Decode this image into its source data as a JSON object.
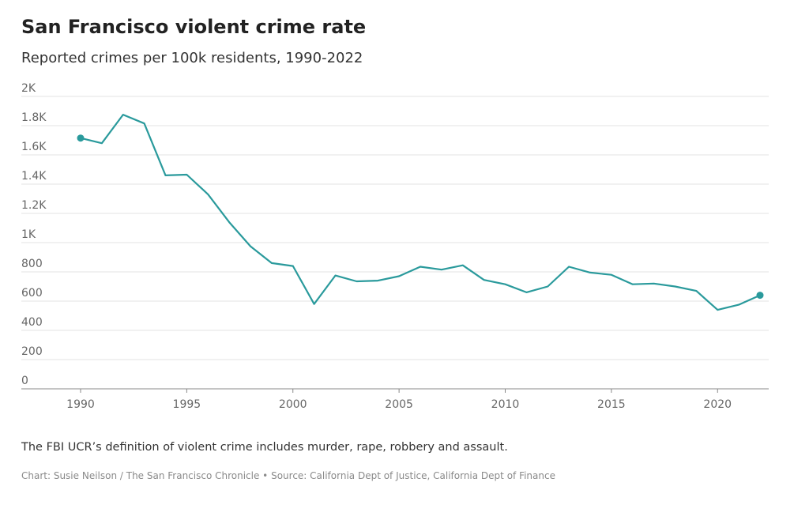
{
  "header": {
    "title": "San Francisco violent crime rate",
    "subtitle": "Reported crimes per 100k residents, 1990-2022"
  },
  "footer": {
    "note": "The FBI UCR’s definition of violent crime includes murder, rape, robbery and assault.",
    "credit": "Chart: Susie Neilson / The San Francisco Chronicle • Source: California Dept of Justice, California Dept of Finance"
  },
  "colors": {
    "line": "#2a9a9c",
    "grid": "#e3e3e3",
    "axis_text": "#666666"
  },
  "chart_data": {
    "type": "line",
    "title": "San Francisco violent crime rate",
    "subtitle": "Reported crimes per 100k residents, 1990-2022",
    "xlabel": "",
    "ylabel": "",
    "xlim": [
      1990,
      2022
    ],
    "ylim": [
      0,
      2000
    ],
    "x_ticks": [
      1990,
      1995,
      2000,
      2005,
      2010,
      2015,
      2020
    ],
    "y_ticks": [
      0,
      200,
      400,
      600,
      800,
      1000,
      1200,
      1400,
      1600,
      1800,
      2000
    ],
    "y_tick_labels": [
      "0",
      "200",
      "400",
      "600",
      "800",
      "1K",
      "1.2K",
      "1.4K",
      "1.6K",
      "1.8K",
      "2K"
    ],
    "grid": true,
    "end_markers": true,
    "x": [
      1990,
      1991,
      1992,
      1993,
      1994,
      1995,
      1996,
      1997,
      1998,
      1999,
      2000,
      2001,
      2002,
      2003,
      2004,
      2005,
      2006,
      2007,
      2008,
      2009,
      2010,
      2011,
      2012,
      2013,
      2014,
      2015,
      2016,
      2017,
      2018,
      2019,
      2020,
      2021,
      2022
    ],
    "series": [
      {
        "values": [
          1715,
          1680,
          1875,
          1815,
          1460,
          1465,
          1330,
          1140,
          975,
          860,
          840,
          580,
          775,
          735,
          740,
          770,
          835,
          815,
          845,
          745,
          715,
          660,
          700,
          835,
          795,
          780,
          715,
          720,
          700,
          670,
          540,
          575,
          640
        ]
      }
    ]
  }
}
